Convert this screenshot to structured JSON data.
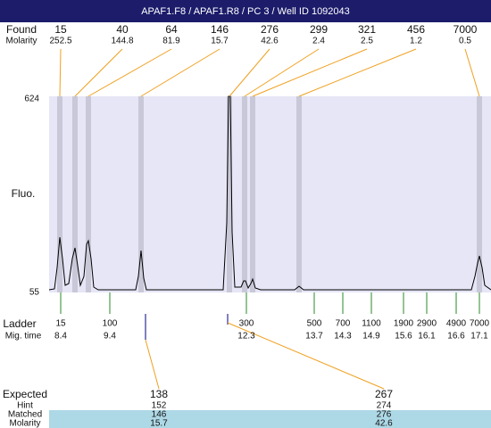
{
  "header": {
    "title": "APAF1.F8 / APAF1.R8 / PC 3 / Well ID 1092043"
  },
  "found": {
    "label": "Found",
    "molarity_label": "Molarity",
    "peaks": [
      {
        "size": 15,
        "molarity": 252.5
      },
      {
        "size": 40,
        "molarity": 144.8
      },
      {
        "size": 64,
        "molarity": 81.9
      },
      {
        "size": 146,
        "molarity": 15.7
      },
      {
        "size": 276,
        "molarity": 42.6
      },
      {
        "size": 299,
        "molarity": 2.4
      },
      {
        "size": 321,
        "molarity": 2.5
      },
      {
        "size": 456,
        "molarity": 1.2
      },
      {
        "size": 7000,
        "molarity": 0.5
      }
    ]
  },
  "plot": {
    "y_top": 624,
    "y_bottom": 55,
    "y_label": "Fluo."
  },
  "ladder": {
    "label": "Ladder",
    "time_label": "Mig. time",
    "items": [
      {
        "size": 15,
        "time": 8.4
      },
      {
        "size": 100,
        "time": 9.4
      },
      {
        "size": 300,
        "time": 12.3
      },
      {
        "size": 500,
        "time": 13.7
      },
      {
        "size": 700,
        "time": 14.3
      },
      {
        "size": 1100,
        "time": 14.9
      },
      {
        "size": 1900,
        "time": 15.6
      },
      {
        "size": 2900,
        "time": 16.1
      },
      {
        "size": 4900,
        "time": 16.6
      },
      {
        "size": 7000,
        "time": 17.1
      }
    ]
  },
  "expected": {
    "labels": {
      "expected": "Expected",
      "hint": "Hint",
      "matched": "Matched",
      "molarity": "Molarity"
    },
    "columns": [
      {
        "expected": 138,
        "hint": 152,
        "matched": 146,
        "molarity": 15.7
      },
      {
        "expected": 267,
        "hint": 274,
        "matched": 276,
        "molarity": 42.6
      }
    ]
  }
}
